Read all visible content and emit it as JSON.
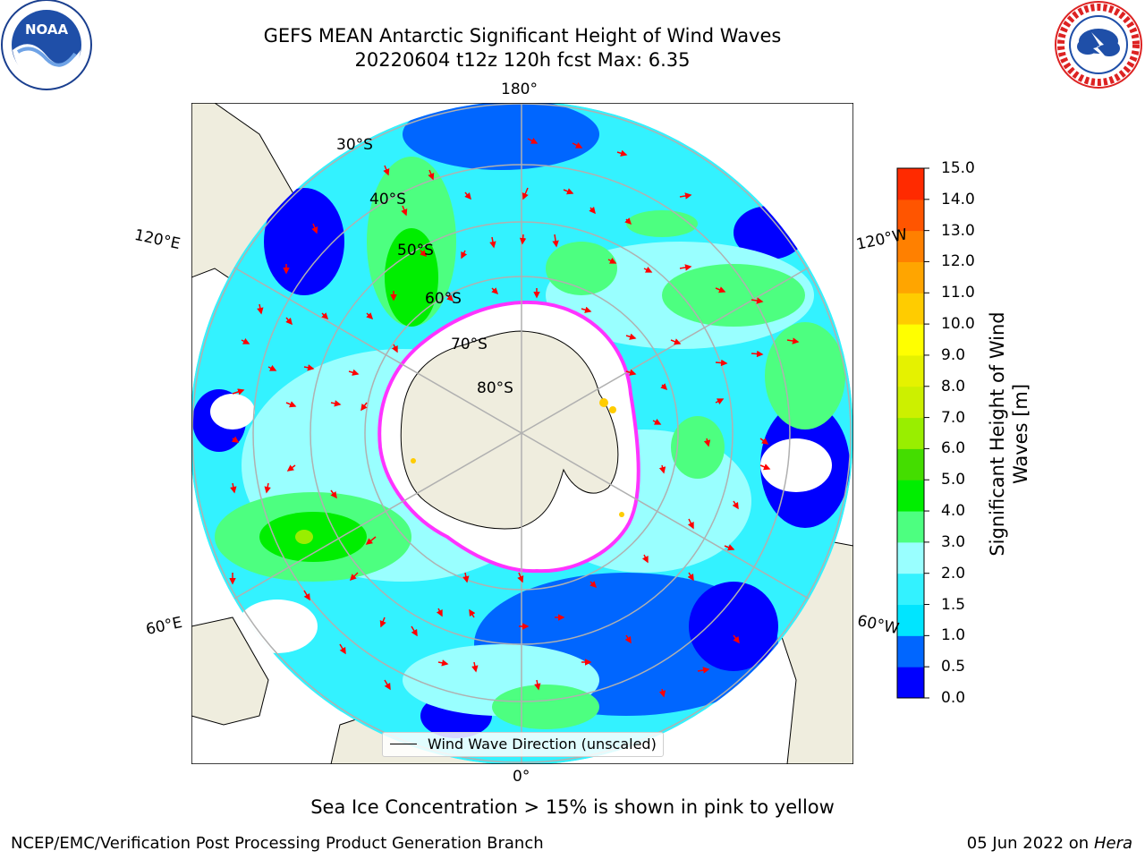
{
  "header": {
    "title_line1": "GEFS MEAN Antarctic Significant Height of Wind Waves",
    "title_line2": "20220604 t12z 120h fcst   Max: 6.35"
  },
  "logos": {
    "noaa": {
      "icon": "noaa-logo",
      "text": "NOAA"
    },
    "nws": {
      "icon": "nws-logo"
    }
  },
  "map": {
    "projection": "south-polar-stereographic",
    "longitude_labels": {
      "top": "180°",
      "bottom": "0°",
      "upper_left": "120°E",
      "upper_right": "120°W",
      "lower_left": "60°E",
      "lower_right": "60°W"
    },
    "latitude_labels": [
      "30°S",
      "40°S",
      "50°S",
      "60°S",
      "70°S",
      "80°S"
    ],
    "legend": "Wind Wave Direction (unscaled)",
    "colors": {
      "land": "#efedde",
      "ice_edge": "#ff33ff",
      "arrows": "#ff0000",
      "grid": "#b0b0b0"
    }
  },
  "colorbar": {
    "label_line1": "Significant Height of Wind",
    "label_line2": "Waves [m]",
    "ticks": [
      "0.0",
      "0.5",
      "1.0",
      "1.5",
      "2.0",
      "3.0",
      "4.0",
      "5.0",
      "6.0",
      "7.0",
      "8.0",
      "9.0",
      "10.0",
      "11.0",
      "12.0",
      "13.0",
      "14.0",
      "15.0"
    ],
    "colors": [
      "#0000ff",
      "#0066ff",
      "#00e5ff",
      "#33f2ff",
      "#99ffff",
      "#4dff80",
      "#00ee00",
      "#44dd00",
      "#99ee00",
      "#ccf000",
      "#e5f200",
      "#ffff00",
      "#ffcc00",
      "#ffa500",
      "#ff8000",
      "#ff5500",
      "#ff2a00"
    ]
  },
  "footer": {
    "ice_note": "Sea Ice Concentration > 15% is shown in pink to yellow",
    "credit": "NCEP/EMC/Verification Post Processing Product Generation Branch",
    "date": "05 Jun 2022 on",
    "machine": "Hera"
  }
}
